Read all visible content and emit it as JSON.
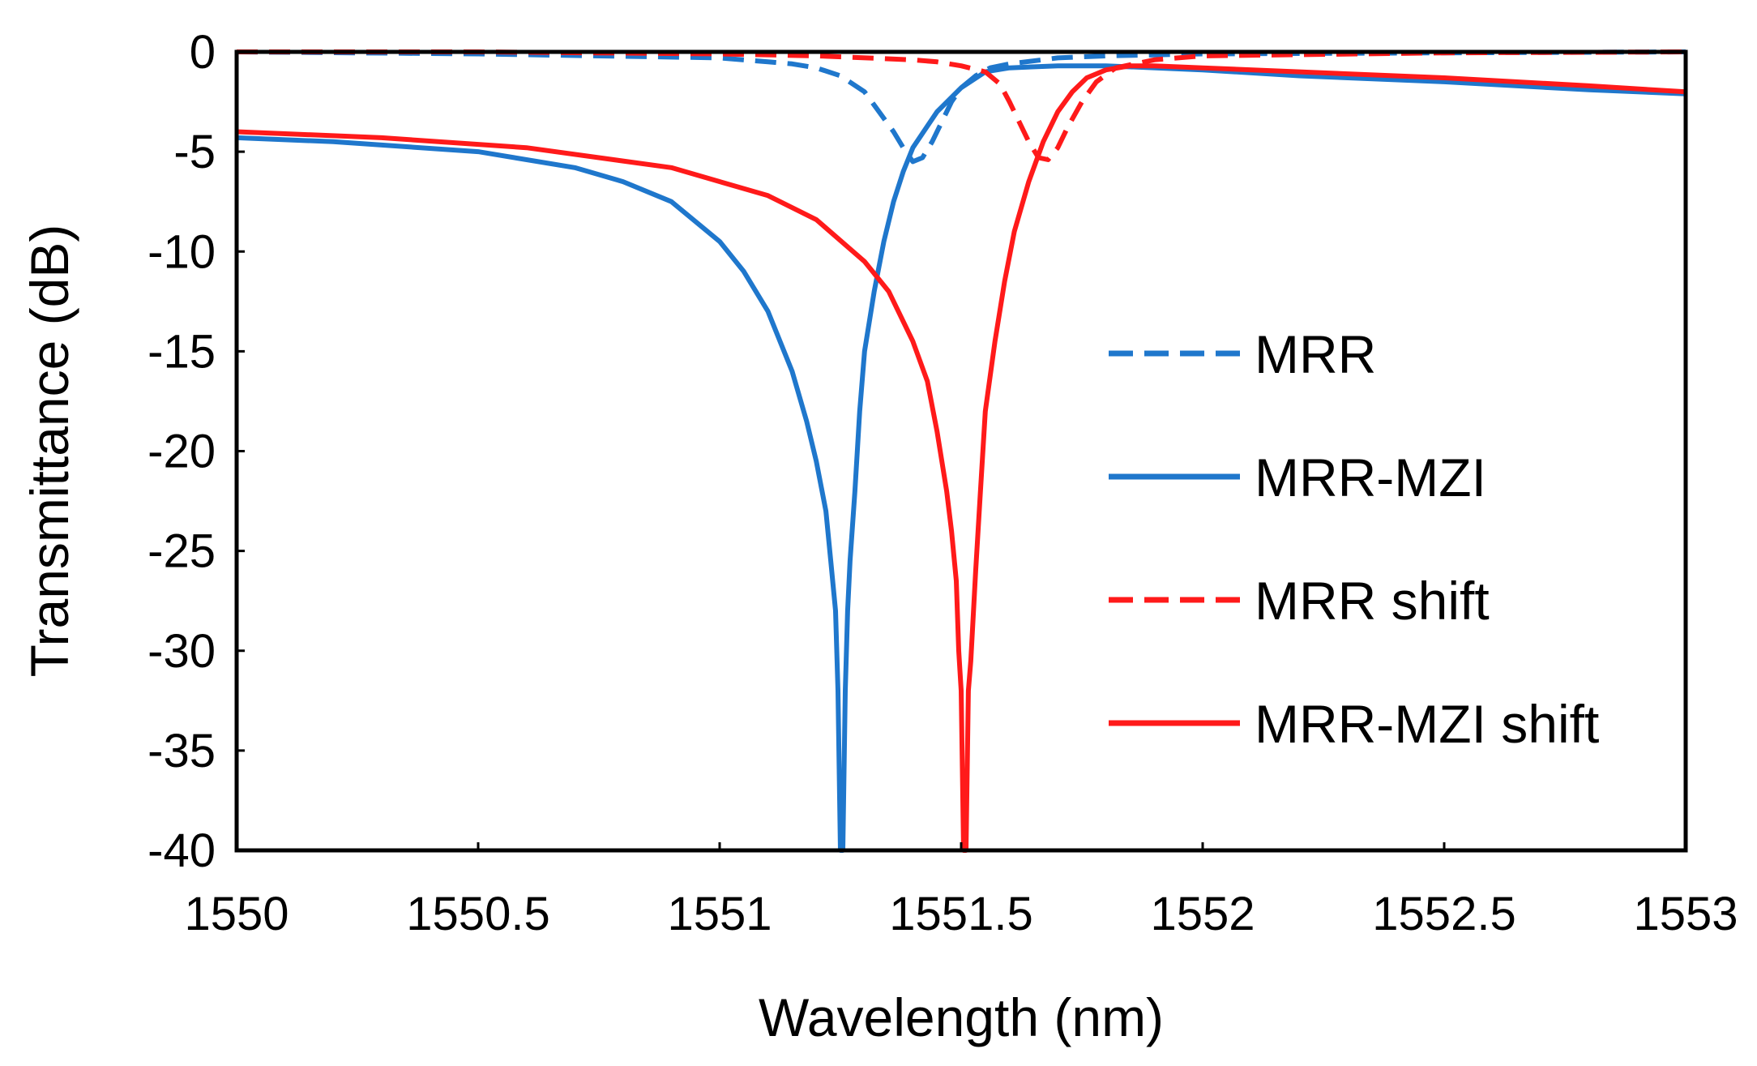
{
  "chart_data": {
    "type": "line",
    "title": "",
    "xlabel": "Wavelength (nm)",
    "ylabel": "Transmittance (dB)",
    "xlim": [
      1550,
      1553
    ],
    "ylim": [
      -40,
      0
    ],
    "grid": false,
    "legend_position": "right",
    "x_ticks": [
      1550,
      1550.5,
      1551,
      1551.5,
      1552,
      1552.5,
      1553
    ],
    "x_tick_labels": [
      "1550",
      "1550.5",
      "1551",
      "1551.5",
      "1552",
      "1552.5",
      "1553"
    ],
    "y_ticks": [
      0,
      -5,
      -10,
      -15,
      -20,
      -25,
      -30,
      -35,
      -40
    ],
    "y_tick_labels": [
      "0",
      "-5",
      "-10",
      "-15",
      "-20",
      "-25",
      "-30",
      "-35",
      "-40"
    ],
    "series": [
      {
        "name": "MRR",
        "color": "#1F77CC",
        "style": "dashed",
        "x": [
          1550,
          1550.5,
          1551,
          1551.1,
          1551.15,
          1551.2,
          1551.25,
          1551.3,
          1551.33,
          1551.36,
          1551.38,
          1551.4,
          1551.42,
          1551.44,
          1551.46,
          1551.48,
          1551.5,
          1551.53,
          1551.56,
          1551.6,
          1551.7,
          1551.8,
          1552,
          1552.5,
          1553
        ],
        "y": [
          0,
          -0.1,
          -0.3,
          -0.5,
          -0.6,
          -0.8,
          -1.2,
          -2.0,
          -3.0,
          -4.0,
          -4.8,
          -5.5,
          -5.3,
          -4.5,
          -3.5,
          -2.5,
          -1.8,
          -1.2,
          -0.8,
          -0.6,
          -0.3,
          -0.2,
          -0.1,
          -0.05,
          0
        ]
      },
      {
        "name": "MRR-MZI",
        "color": "#1F77CC",
        "style": "solid",
        "x": [
          1550,
          1550.2,
          1550.5,
          1550.7,
          1550.8,
          1550.9,
          1551.0,
          1551.05,
          1551.1,
          1551.15,
          1551.18,
          1551.2,
          1551.22,
          1551.23,
          1551.24,
          1551.245,
          1551.25,
          1551.255,
          1551.26,
          1551.265,
          1551.27,
          1551.28,
          1551.29,
          1551.3,
          1551.32,
          1551.34,
          1551.36,
          1551.38,
          1551.4,
          1551.45,
          1551.5,
          1551.55,
          1551.6,
          1551.7,
          1551.8,
          1552.0,
          1552.2,
          1552.5,
          1552.8,
          1553
        ],
        "y": [
          -4.3,
          -4.5,
          -5.0,
          -5.8,
          -6.5,
          -7.5,
          -9.5,
          -11.0,
          -13.0,
          -16.0,
          -18.5,
          -20.5,
          -23.0,
          -25.5,
          -28.0,
          -32.0,
          -40,
          -40,
          -32.0,
          -28.0,
          -25.5,
          -22.0,
          -18.0,
          -15.0,
          -12.0,
          -9.5,
          -7.5,
          -6.0,
          -4.8,
          -3.0,
          -1.8,
          -1.0,
          -0.8,
          -0.7,
          -0.7,
          -0.9,
          -1.2,
          -1.5,
          -1.9,
          -2.1
        ]
      },
      {
        "name": "MRR shift",
        "color": "#FF1A1A",
        "style": "dashed",
        "x": [
          1550,
          1550.5,
          1551,
          1551.2,
          1551.4,
          1551.45,
          1551.5,
          1551.55,
          1551.58,
          1551.6,
          1551.62,
          1551.64,
          1551.66,
          1551.68,
          1551.7,
          1551.72,
          1551.75,
          1551.78,
          1551.82,
          1551.9,
          1552,
          1552.5,
          1553
        ],
        "y": [
          0,
          0,
          -0.1,
          -0.2,
          -0.4,
          -0.5,
          -0.7,
          -1.0,
          -1.6,
          -2.5,
          -3.5,
          -4.5,
          -5.3,
          -5.4,
          -4.8,
          -3.8,
          -2.5,
          -1.5,
          -0.8,
          -0.4,
          -0.2,
          -0.05,
          0
        ]
      },
      {
        "name": "MRR-MZI shift",
        "color": "#FF1A1A",
        "style": "solid",
        "x": [
          1550,
          1550.3,
          1550.6,
          1550.9,
          1551.1,
          1551.2,
          1551.3,
          1551.35,
          1551.4,
          1551.43,
          1551.45,
          1551.47,
          1551.48,
          1551.49,
          1551.495,
          1551.5,
          1551.505,
          1551.51,
          1551.515,
          1551.52,
          1551.53,
          1551.54,
          1551.55,
          1551.57,
          1551.59,
          1551.61,
          1551.64,
          1551.67,
          1551.7,
          1551.73,
          1551.76,
          1551.8,
          1551.85,
          1551.9,
          1552.0,
          1552.2,
          1552.5,
          1552.8,
          1553
        ],
        "y": [
          -4.0,
          -4.3,
          -4.8,
          -5.8,
          -7.2,
          -8.4,
          -10.5,
          -12.0,
          -14.5,
          -16.5,
          -19.0,
          -22.0,
          -24.0,
          -26.5,
          -30.0,
          -32.0,
          -40,
          -40,
          -32.0,
          -30.5,
          -26.0,
          -22.0,
          -18.0,
          -14.5,
          -11.5,
          -9.0,
          -6.5,
          -4.5,
          -3.0,
          -2.0,
          -1.3,
          -0.9,
          -0.7,
          -0.7,
          -0.8,
          -1.0,
          -1.3,
          -1.7,
          -2.0
        ]
      }
    ]
  }
}
